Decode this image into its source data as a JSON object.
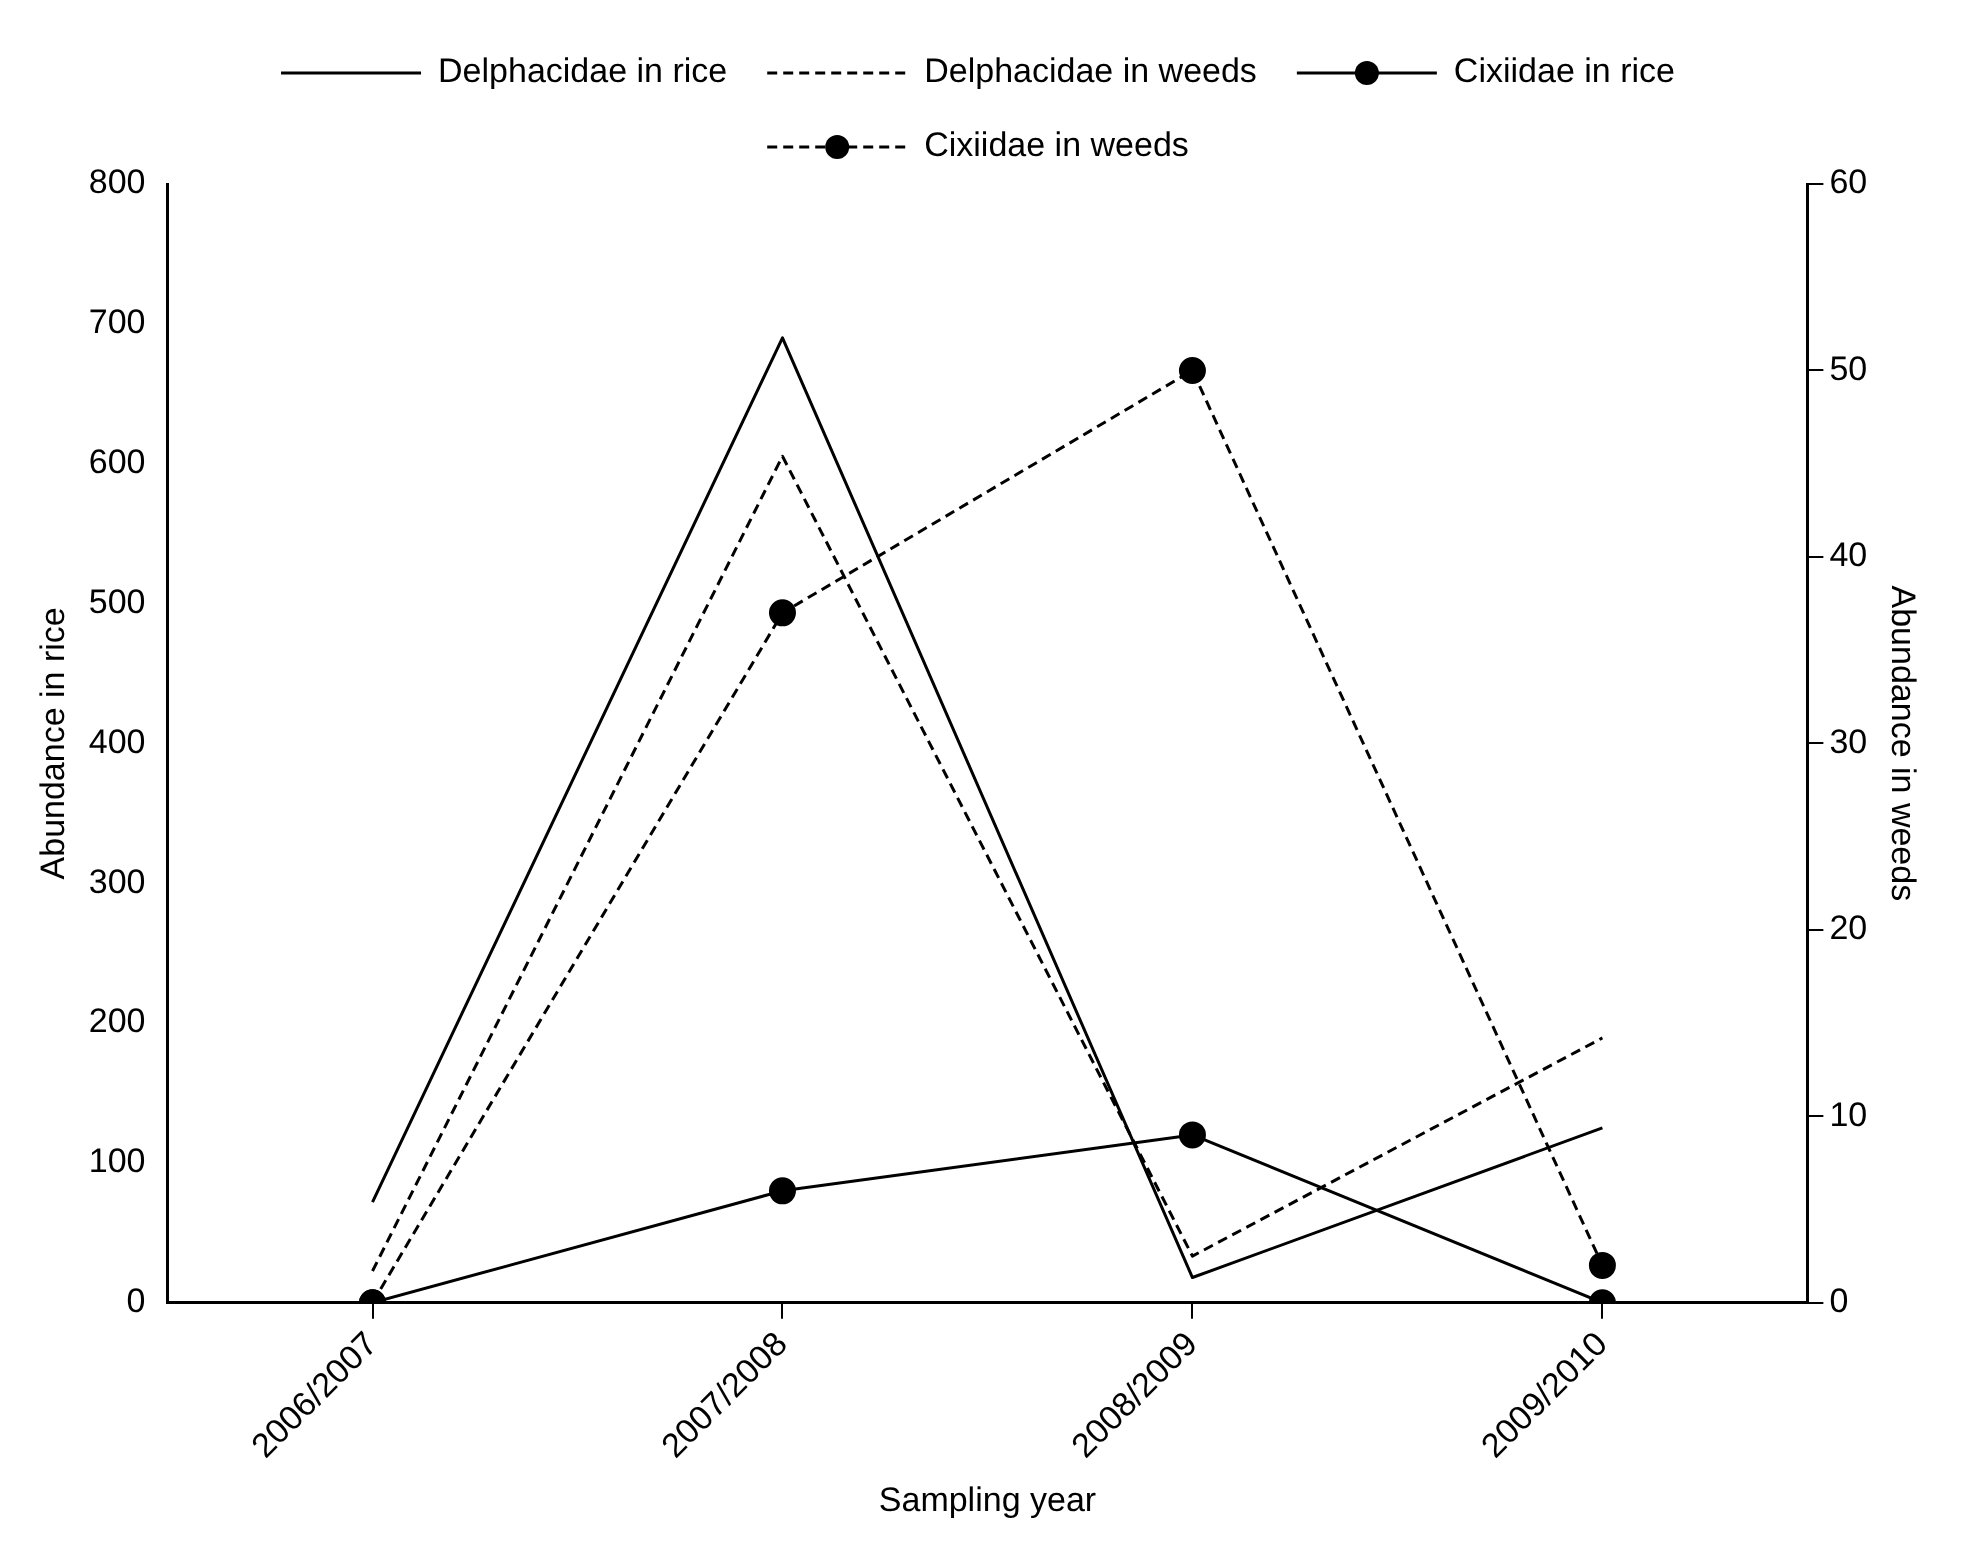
{
  "chart_data": {
    "type": "line",
    "xlabel": "Sampling year",
    "ylabel": "Abundance in rice",
    "y2label": "Abundance in weeds",
    "categories": [
      "2006/2007",
      "2007/2008",
      "2008/2009",
      "2009/2010"
    ],
    "series": [
      {
        "name": "Delphacidae in rice",
        "color": "#000000",
        "values": [
          72,
          690,
          18,
          125
        ],
        "axis": "y",
        "line_style": "solid",
        "marker": "none"
      },
      {
        "name": "Delphacidae in weeds",
        "color": "#000000",
        "values": [
          1.7,
          45.4,
          2.5,
          14.2
        ],
        "axis": "y2",
        "line_style": "dashed",
        "marker": "none"
      },
      {
        "name": "Cixiidae in rice",
        "color": "#000000",
        "values": [
          0,
          80,
          120,
          0
        ],
        "axis": "y",
        "line_style": "solid",
        "marker": "circle"
      },
      {
        "name": "Cixiidae in weeds",
        "color": "#000000",
        "values": [
          0,
          37,
          50,
          2
        ],
        "axis": "y2",
        "line_style": "dashed",
        "marker": "circle"
      }
    ],
    "ylim": [
      0,
      800
    ],
    "yticks": [
      0,
      100,
      200,
      300,
      400,
      500,
      600,
      700,
      800
    ],
    "y2lim": [
      0,
      60
    ],
    "y2ticks": [
      0,
      10,
      20,
      30,
      40,
      50,
      60
    ],
    "grid": false,
    "legend": "top"
  }
}
